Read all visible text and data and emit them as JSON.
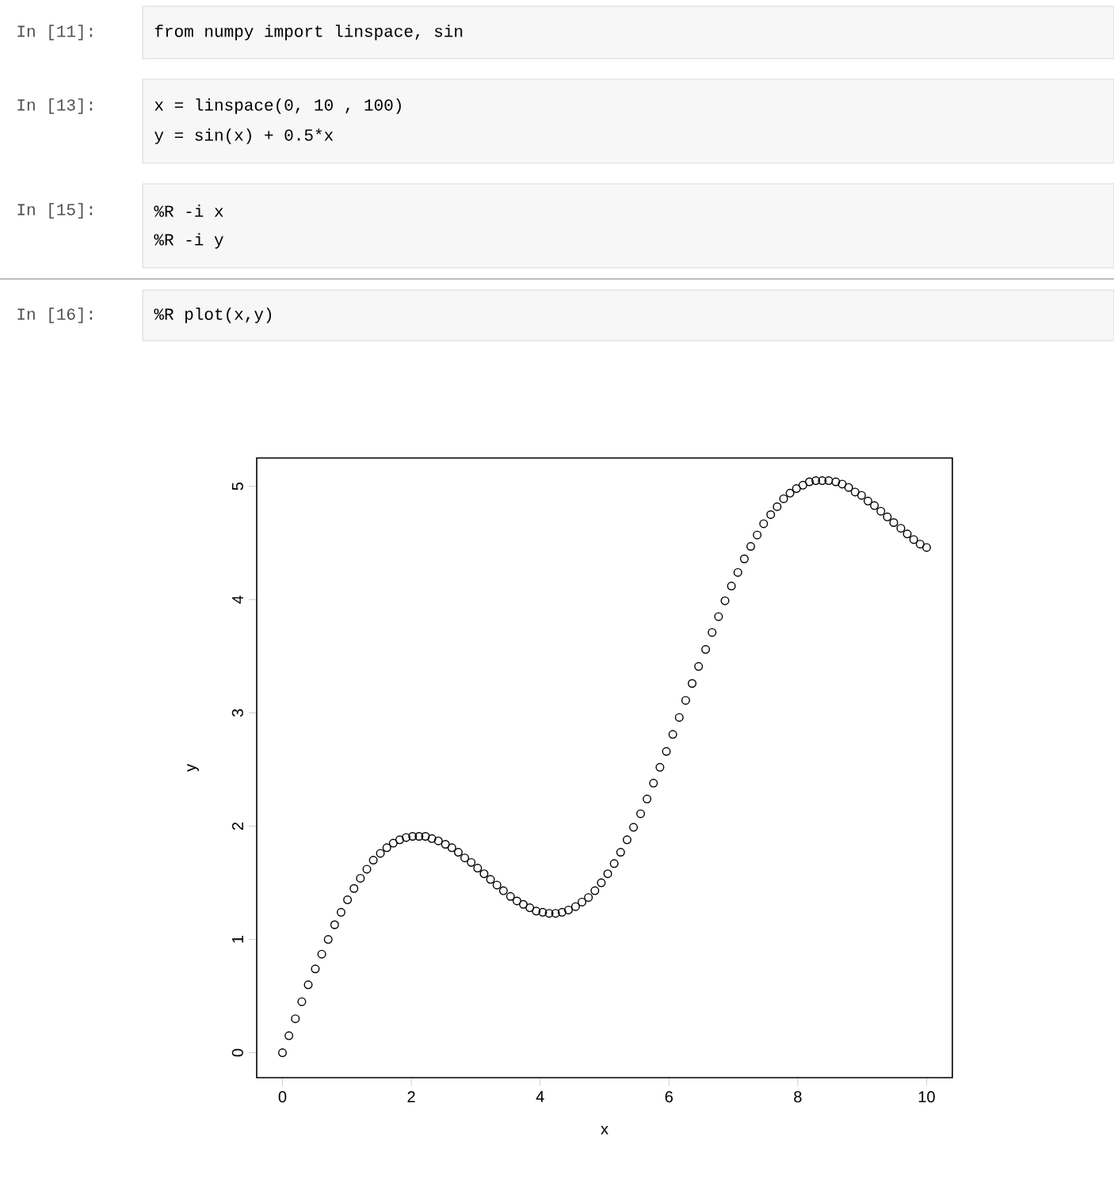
{
  "chart_data": {
    "type": "scatter",
    "xlabel": "x",
    "ylabel": "y",
    "annotations": [
      "In [11]:",
      "from numpy import linspace, sin",
      "In [13]:",
      "x = linspace(0, 10 , 100)",
      "y = sin(x) + 0.5*x",
      "In [15]:",
      "%R -i x",
      "%R -i y",
      "In [16]:",
      "%R plot(x,y)"
    ],
    "x": [
      0.0,
      0.1,
      0.2,
      0.3,
      0.4,
      0.51,
      0.61,
      0.71,
      0.81,
      0.91,
      1.01,
      1.11,
      1.21,
      1.31,
      1.41,
      1.52,
      1.62,
      1.72,
      1.82,
      1.92,
      2.02,
      2.12,
      2.22,
      2.32,
      2.42,
      2.53,
      2.63,
      2.73,
      2.83,
      2.93,
      3.03,
      3.13,
      3.23,
      3.33,
      3.43,
      3.54,
      3.64,
      3.74,
      3.84,
      3.94,
      4.04,
      4.14,
      4.24,
      4.34,
      4.44,
      4.55,
      4.65,
      4.75,
      4.85,
      4.95,
      5.05,
      5.15,
      5.25,
      5.35,
      5.45,
      5.56,
      5.66,
      5.76,
      5.86,
      5.96,
      6.06,
      6.16,
      6.26,
      6.36,
      6.46,
      6.57,
      6.67,
      6.77,
      6.87,
      6.97,
      7.07,
      7.17,
      7.27,
      7.37,
      7.47,
      7.58,
      7.68,
      7.78,
      7.88,
      7.98,
      8.08,
      8.18,
      8.28,
      8.38,
      8.48,
      8.59,
      8.69,
      8.79,
      8.89,
      8.99,
      9.09,
      9.19,
      9.29,
      9.39,
      9.49,
      9.6,
      9.7,
      9.8,
      9.9,
      10.0
    ],
    "series": [
      {
        "color": "#000000",
        "values": [
          0.0,
          0.15,
          0.3,
          0.45,
          0.6,
          0.74,
          0.87,
          1.0,
          1.13,
          1.24,
          1.35,
          1.45,
          1.54,
          1.62,
          1.7,
          1.76,
          1.81,
          1.85,
          1.88,
          1.9,
          1.91,
          1.91,
          1.91,
          1.89,
          1.87,
          1.84,
          1.81,
          1.77,
          1.72,
          1.68,
          1.63,
          1.58,
          1.53,
          1.48,
          1.43,
          1.38,
          1.34,
          1.31,
          1.28,
          1.25,
          1.24,
          1.23,
          1.23,
          1.24,
          1.26,
          1.29,
          1.33,
          1.37,
          1.43,
          1.5,
          1.58,
          1.67,
          1.77,
          1.88,
          1.99,
          2.11,
          2.24,
          2.38,
          2.52,
          2.66,
          2.81,
          2.96,
          3.11,
          3.26,
          3.41,
          3.56,
          3.71,
          3.85,
          3.99,
          4.12,
          4.24,
          4.36,
          4.47,
          4.57,
          4.67,
          4.75,
          4.82,
          4.89,
          4.94,
          4.98,
          5.01,
          5.04,
          5.05,
          5.05,
          5.05,
          5.04,
          5.02,
          4.99,
          4.95,
          4.92,
          4.87,
          4.83,
          4.78,
          4.73,
          4.68,
          4.63,
          4.58,
          4.53,
          4.49,
          4.46
        ]
      }
    ],
    "xlim": [
      -0.4,
      10.4
    ],
    "ylim": [
      -0.22,
      5.25
    ],
    "xticks": [
      0,
      2,
      4,
      6,
      8,
      10
    ],
    "yticks": [
      0,
      1,
      2,
      3,
      4,
      5
    ],
    "marker": "circle"
  }
}
